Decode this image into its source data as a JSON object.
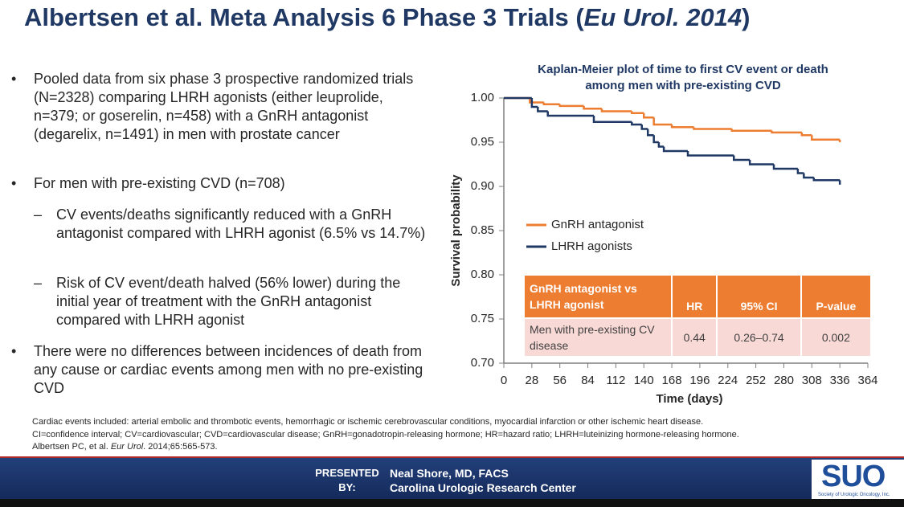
{
  "title": {
    "parts": [
      "Albertsen et al. Meta Analysis 6 Phase 3 Trials (",
      "Eu Urol. 2014",
      ")"
    ]
  },
  "bullets": [
    {
      "text": "Pooled data from six phase 3 prospective randomized trials (N=2328) comparing LHRH agonists (either leuprolide, n=379; or goserelin, n=458) with a GnRH antagonist (degarelix, n=1491) in men with prostate cancer"
    },
    {
      "text": "For men with pre-existing CVD (n=708)",
      "sub": [
        "CV events/deaths significantly reduced with a GnRH antagonist compared with LHRH agonist (6.5% vs 14.7%)",
        "Risk of CV event/death halved (56% lower) during the initial year of treatment with the GnRH antagonist compared with LHRH agonist"
      ]
    },
    {
      "text": "There were no differences between incidences of death from any cause or cardiac events among men with no pre-existing CVD"
    }
  ],
  "chart_data": {
    "type": "line",
    "step": true,
    "title": "Kaplan-Meier plot of time to first CV event or death among men with pre-existing CVD",
    "x_label": "Time (days)",
    "y_label": "Survival probability",
    "xlim": [
      0,
      364
    ],
    "xticks": [
      0,
      28,
      56,
      84,
      112,
      140,
      168,
      196,
      224,
      252,
      280,
      308,
      336,
      364
    ],
    "ylim": [
      0.7,
      1.0
    ],
    "yticks": [
      {
        "value": 0.7,
        "label": "0.70"
      },
      {
        "value": 0.75,
        "label": "0.75"
      },
      {
        "value": 0.8,
        "label": "0.80"
      },
      {
        "value": 0.85,
        "label": "0.85"
      },
      {
        "value": 0.9,
        "label": "0.90"
      },
      {
        "value": 0.95,
        "label": "0.95"
      },
      {
        "value": 1.0,
        "label": "1.00"
      }
    ],
    "series": [
      {
        "name": "GnRH antagonist",
        "color": "#ed7d31",
        "x": [
          0,
          26,
          40,
          56,
          80,
          98,
          128,
          140,
          150,
          168,
          190,
          228,
          268,
          298,
          308,
          336
        ],
        "values": [
          1.0,
          0.995,
          0.993,
          0.991,
          0.988,
          0.985,
          0.983,
          0.978,
          0.97,
          0.967,
          0.965,
          0.963,
          0.961,
          0.958,
          0.953,
          0.95
        ]
      },
      {
        "name": "LHRH agonists",
        "color": "#1f3864",
        "x": [
          0,
          28,
          34,
          44,
          90,
          128,
          138,
          144,
          150,
          155,
          160,
          184,
          230,
          246,
          270,
          294,
          300,
          310,
          336
        ],
        "values": [
          1.0,
          0.99,
          0.985,
          0.98,
          0.973,
          0.97,
          0.965,
          0.958,
          0.95,
          0.945,
          0.94,
          0.935,
          0.93,
          0.925,
          0.92,
          0.915,
          0.91,
          0.907,
          0.902
        ]
      }
    ]
  },
  "table": {
    "header": [
      "GnRH antagonist vs LHRH agonist",
      "HR",
      "95% CI",
      "P-value"
    ],
    "rows": [
      [
        "Men with pre-existing CV disease",
        0.44,
        "0.26–0.74",
        0.002
      ]
    ]
  },
  "notes": [
    "Cardiac events included: arterial embolic and thrombotic events, hemorrhagic or ischemic cerebrovascular conditions, myocardial infarction or other ischemic heart disease.",
    "CI=confidence interval; CV=cardiovascular; CVD=cardiovascular disease; GnRH=gonadotropin-releasing hormone; HR=hazard ratio; LHRH=luteinizing hormone-releasing hormone.",
    [
      "Albertsen PC, et al. ",
      "Eur Urol",
      ". 2014;65:565-573."
    ]
  ],
  "footer": {
    "presented_label": "PRESENTED BY:",
    "presenter": "Neal Shore, MD, FACS",
    "institution": "Carolina Urologic Research Center",
    "logo": "SUO",
    "logo_caption": "Society of Urologic Oncology, Inc."
  }
}
